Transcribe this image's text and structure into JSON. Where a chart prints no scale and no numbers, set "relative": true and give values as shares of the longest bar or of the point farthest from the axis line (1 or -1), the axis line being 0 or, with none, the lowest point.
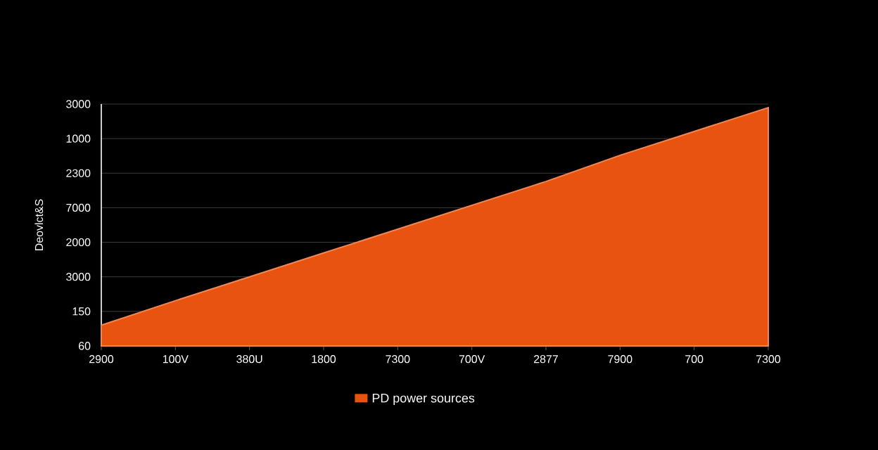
{
  "chart_data": {
    "type": "area",
    "relative": true,
    "ylabel": "Deovlct&S",
    "categories": [
      "2900",
      "100V",
      "380U",
      "1800",
      "7300",
      "700V",
      "2877",
      "7900",
      "700",
      "7300"
    ],
    "series": [
      {
        "name": "PD power sources",
        "color": "#e8540f",
        "values": [
          0.087,
          0.19,
          0.29,
          0.39,
          0.49,
          0.59,
          0.69,
          0.8,
          0.9,
          1
        ]
      }
    ],
    "annotations": [
      "60",
      "150",
      "3000",
      "2000",
      "7000",
      "2300",
      "1000",
      "3000"
    ],
    "grid": "y",
    "legend": "bottom",
    "marker": "none"
  }
}
